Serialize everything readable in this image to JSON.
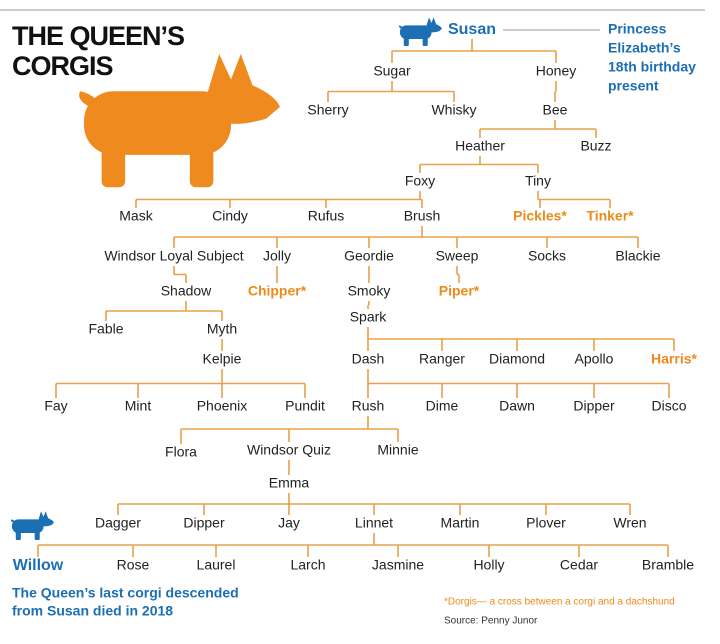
{
  "title": [
    "THE QUEEN’S",
    "CORGIS"
  ],
  "nodes": [
    "Susan",
    "Sugar",
    "Honey",
    "Sherry",
    "Whisky",
    "Bee",
    "Heather",
    "Buzz",
    "Foxy",
    "Tiny",
    "Mask",
    "Cindy",
    "Rufus",
    "Brush",
    "Pickles*",
    "Tinker*",
    "Windsor Loyal Subject",
    "Jolly",
    "Geordie",
    "Sweep",
    "Socks",
    "Blackie",
    "Shadow",
    "Chipper*",
    "Smoky",
    "Piper*",
    "Spark",
    "Fable",
    "Myth",
    "Kelpie",
    "Dash",
    "Ranger",
    "Diamond",
    "Apollo",
    "Harris*",
    "Fay",
    "Mint",
    "Phoenix",
    "Pundit",
    "Rush",
    "Dime",
    "Dawn",
    "Dipper",
    "Disco",
    "Flora",
    "Windsor Quiz",
    "Minnie",
    "Emma",
    "Dagger",
    "Dipper",
    "Jay",
    "Linnet",
    "Martin",
    "Plover",
    "Wren",
    "Willow",
    "Rose",
    "Laurel",
    "Larch",
    "Jasmine",
    "Holly",
    "Cedar",
    "Bramble"
  ],
  "susan_note": [
    "Princess",
    "Elizabeth’s",
    "18th birthday",
    "present"
  ],
  "willow_note": [
    "The Queen’s last corgi descended",
    "from Susan died in 2018"
  ],
  "footnote": "*Dorgis— a cross between a corgi and a dachshund",
  "source": "Source: Penny Junor"
}
